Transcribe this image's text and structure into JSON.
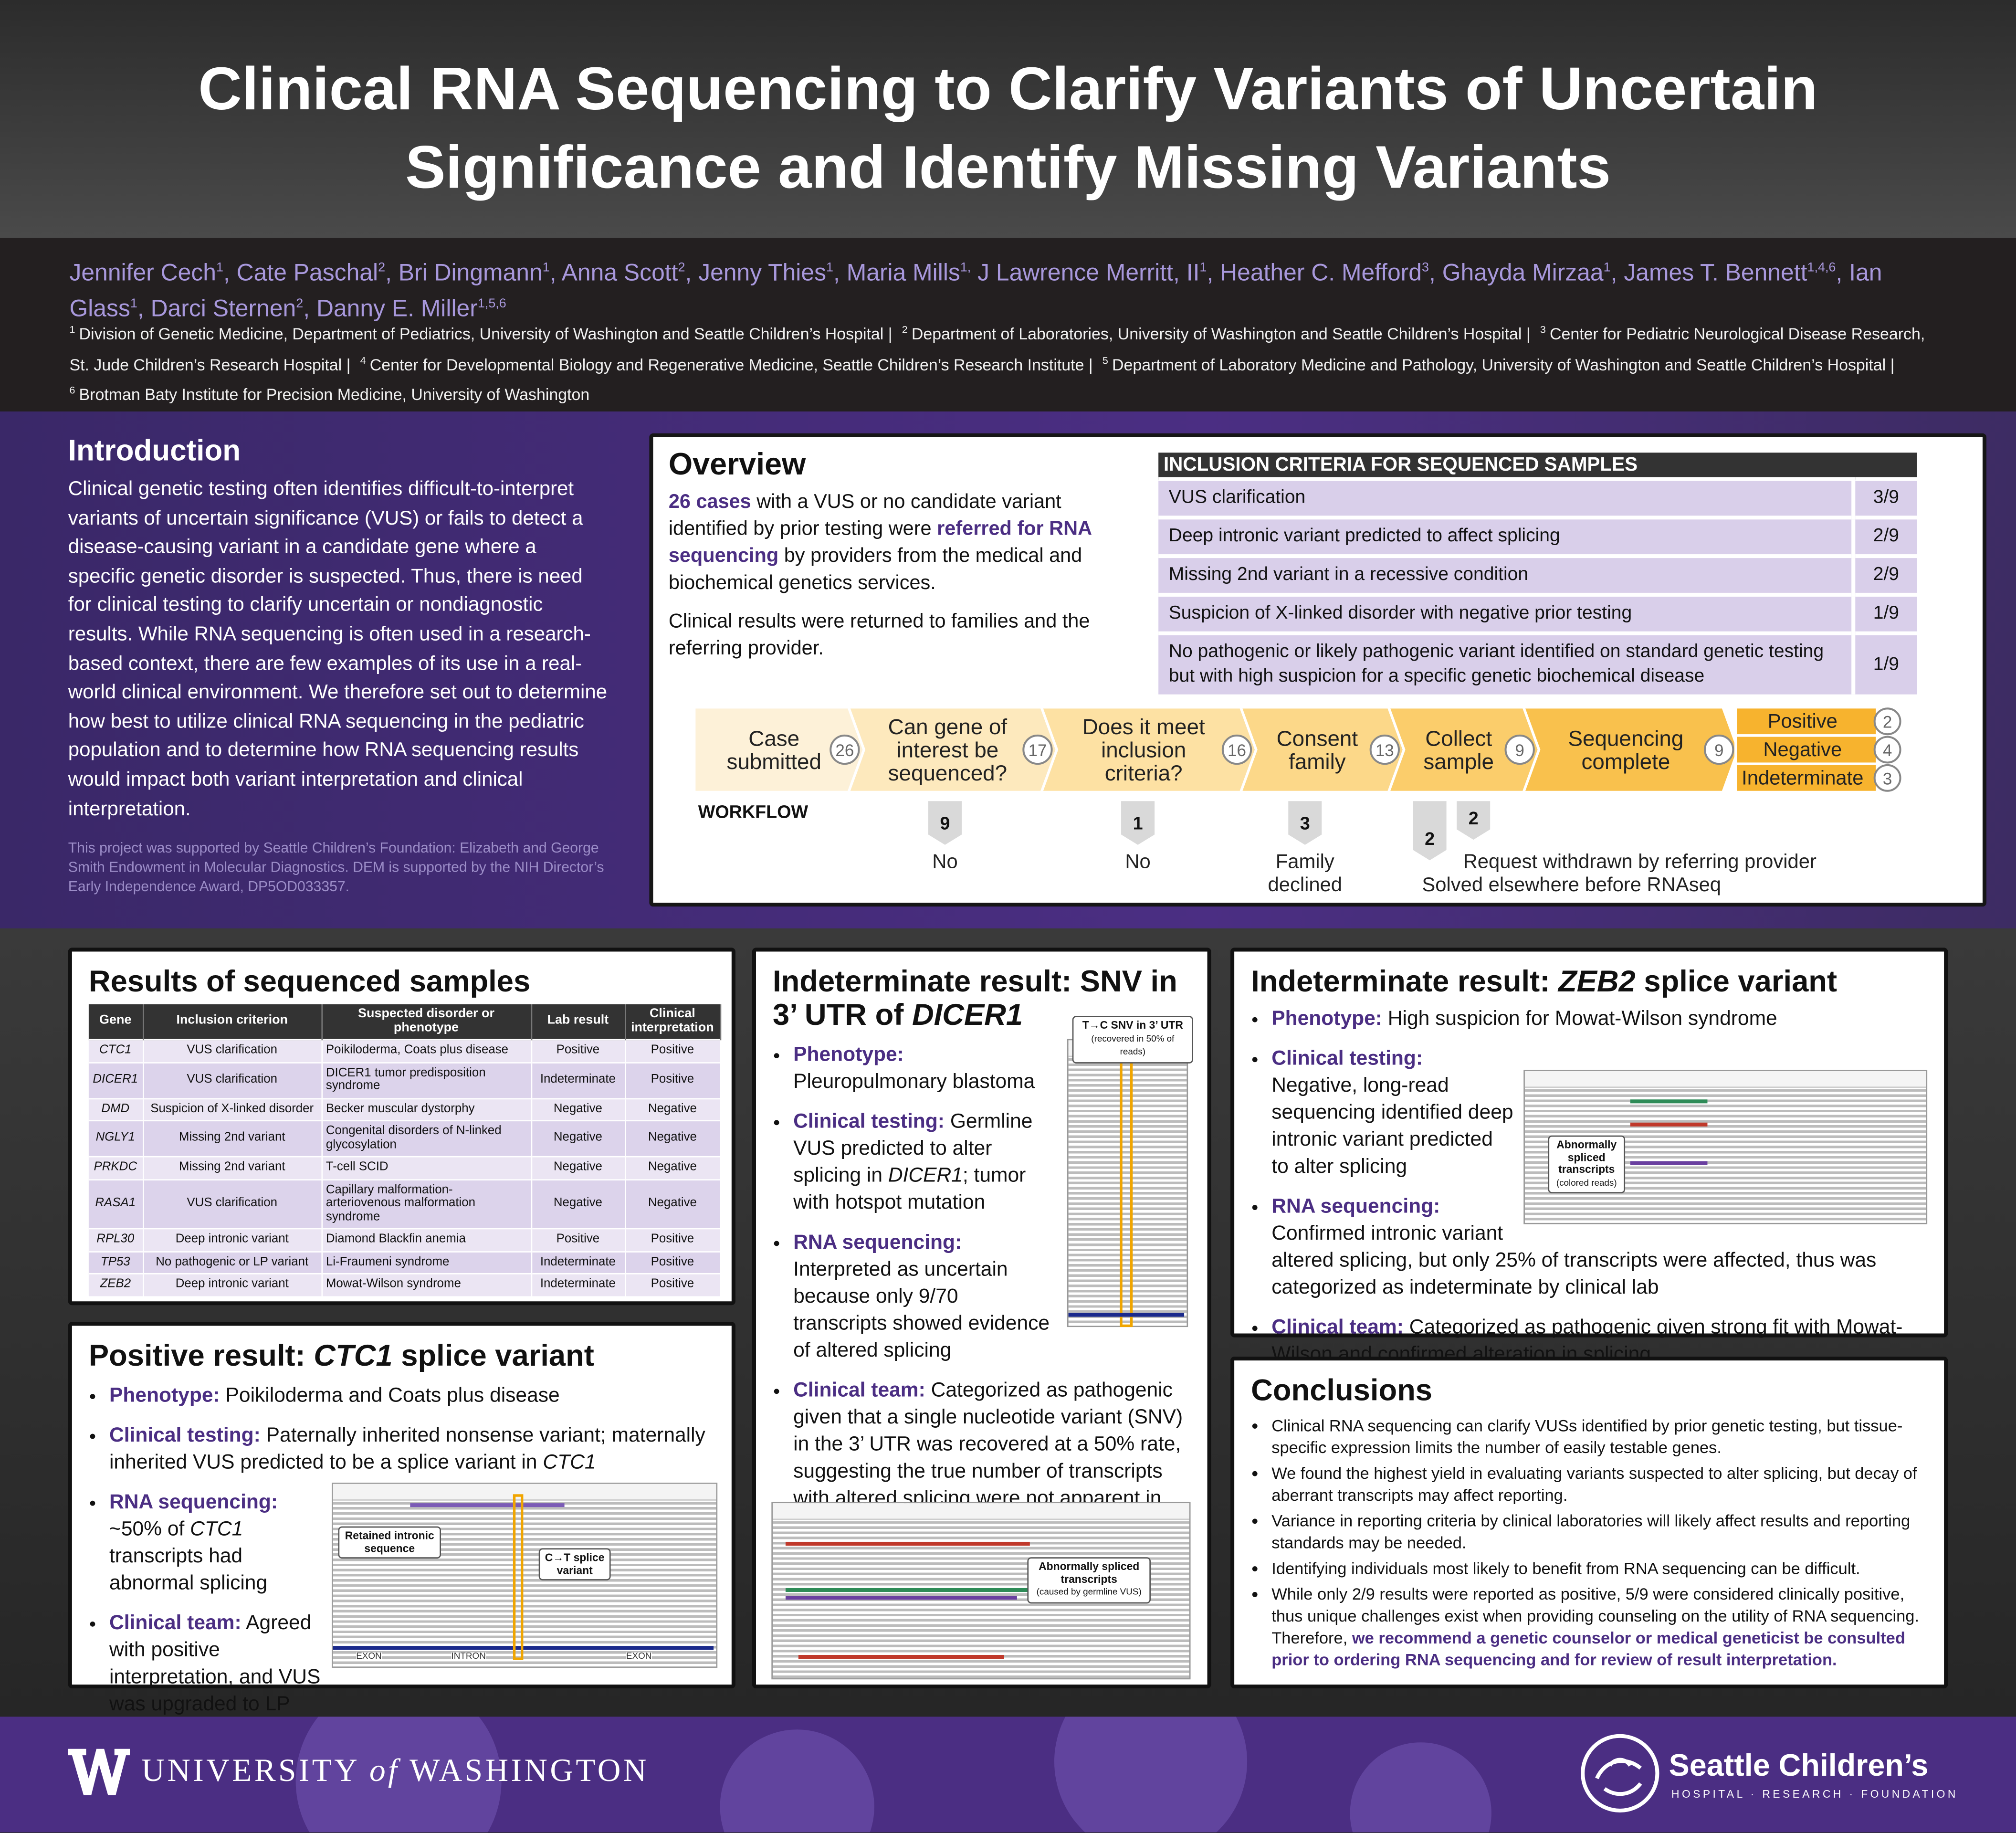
{
  "header": {
    "title": [
      "Clinical RNA Sequencing to Clarify Variants of Uncertain",
      "Significance and Identify Missing Variants"
    ],
    "authors": [
      {
        "name": "Jennifer Cech",
        "sup": "1",
        "sep": ","
      },
      {
        "name": "Cate Paschal",
        "sup": "2",
        "sep": ","
      },
      {
        "name": "Bri Dingmann",
        "sup": "1",
        "sep": ","
      },
      {
        "name": "Anna Scott",
        "sup": "2",
        "sep": ","
      },
      {
        "name": "Jenny Thies",
        "sup": "1",
        "sep": ","
      },
      {
        "name": "Maria Mills",
        "sup": "1,",
        "sep": ""
      },
      {
        "name": "J Lawrence Merritt, II",
        "sup": "1",
        "sep": ","
      },
      {
        "name": "Heather C. Mefford",
        "sup": "3",
        "sep": ","
      },
      {
        "name": "Ghayda Mirzaa",
        "sup": "1",
        "sep": ","
      },
      {
        "name": "James T. Bennett",
        "sup": "1,4,6",
        "sep": ","
      },
      {
        "name": "Ian Glass",
        "sup": "1",
        "sep": ","
      },
      {
        "name": "Darci Sternen",
        "sup": "2",
        "sep": ","
      },
      {
        "name": "Danny E. Miller",
        "sup": "1,5,6",
        "sep": ""
      }
    ],
    "affiliations": [
      {
        "sup": "1",
        "text": "Division of Genetic Medicine, Department of Pediatrics, University of Washington and Seattle Children’s Hospital |"
      },
      {
        "sup": "2",
        "text": "Department of Laboratories, University of Washington and Seattle Children’s Hospital |"
      },
      {
        "sup": "3",
        "text": "Center for Pediatric Neurological Disease Research, St. Jude Children’s Research Hospital |"
      },
      {
        "sup": "4",
        "text": "Center for Developmental Biology and Regenerative Medicine, Seattle Children’s Research Institute |"
      },
      {
        "sup": "5",
        "text": "Department of Laboratory Medicine and Pathology, University of Washington and Seattle Children’s Hospital |"
      },
      {
        "sup": "6",
        "text": "Brotman Baty Institute for Precision Medicine, University of Washington"
      }
    ]
  },
  "introduction": {
    "heading": "Introduction",
    "body": "Clinical genetic testing often identifies difficult-to-interpret variants of uncertain significance (VUS) or fails to detect a disease-causing variant in a candidate gene where a specific genetic disorder is suspected. Thus, there is need for clinical testing to clarify uncertain or nondiagnostic results. While RNA sequencing is often used in a research-based context, there are few examples of its use in a real-world clinical environment. We therefore set out to determine how best to utilize clinical RNA sequencing in the pediatric population and to determine how RNA sequencing results would impact both variant interpretation and clinical interpretation.",
    "funding": "This project was supported by Seattle Children’s Foundation: Elizabeth and George Smith Endowment in Molecular Diagnostics. DEM is supported by the NIH Director’s Early Independence Award, DP5OD033357."
  },
  "overview": {
    "heading": "Overview",
    "paragraphs": [
      [
        {
          "text": "26 cases",
          "style": "emphasis"
        },
        " with a VUS or no candidate variant identified by prior testing were ",
        {
          "text": "referred for RNA sequencing",
          "style": "emphasis"
        },
        " by providers from the medical and biochemical genetics services."
      ],
      "Clinical results were returned to families and the referring provider."
    ],
    "inclusion_table": {
      "title": "INCLUSION CRITERIA FOR SEQUENCED SAMPLES",
      "rows": [
        [
          "VUS clarification",
          "3/9"
        ],
        [
          "Deep intronic variant predicted to affect splicing",
          "2/9"
        ],
        [
          "Missing 2nd variant in a recessive condition",
          "2/9"
        ],
        [
          "Suspicion of X-linked disorder with negative prior testing",
          "1/9"
        ],
        [
          "No pathogenic or likely pathogenic variant identified on standard genetic testing but with high suspicion for a specific genetic biochemical disease",
          "1/9"
        ]
      ]
    },
    "workflow": {
      "label": "WORKFLOW",
      "steps": [
        {
          "label": [
            "Case",
            "submitted"
          ],
          "count": 26
        },
        {
          "label": [
            "Can gene of",
            "interest be",
            "sequenced?"
          ],
          "count": 17
        },
        {
          "label": [
            "Does it meet",
            "inclusion",
            "criteria?"
          ],
          "count": 16
        },
        {
          "label": [
            "Consent",
            "family"
          ],
          "count": 13
        },
        {
          "label": [
            "Collect",
            "sample"
          ],
          "count": 9
        },
        {
          "label": [
            "Sequencing",
            "complete"
          ],
          "count": 9
        }
      ],
      "outcomes": [
        {
          "label": "Positive",
          "count": 2
        },
        {
          "label": "Negative",
          "count": 4
        },
        {
          "label": "Indeterminate",
          "count": 3
        }
      ],
      "dropouts": [
        {
          "count": 9,
          "label": [
            "No"
          ]
        },
        {
          "count": 1,
          "label": [
            "No"
          ]
        },
        {
          "count": 3,
          "label": [
            "Family",
            "declined"
          ]
        },
        {
          "count": 2,
          "label": [
            "Request withdrawn by referring provider"
          ]
        },
        {
          "count": 2,
          "label": [
            "Solved elsewhere before RNAseq"
          ]
        }
      ]
    }
  },
  "results_table": {
    "heading": "Results of sequenced samples",
    "columns": [
      "Gene",
      "Inclusion criterion",
      "Suspected disorder or phenotype",
      "Lab result",
      "Clinical interpretation"
    ],
    "rows": [
      [
        "CTC1",
        "VUS clarification",
        "Poikiloderma, Coats plus disease",
        "Positive",
        "Positive"
      ],
      [
        "DICER1",
        "VUS clarification",
        "DICER1 tumor predisposition syndrome",
        "Indeterminate",
        "Positive"
      ],
      [
        "DMD",
        "Suspicion of X-linked disorder",
        "Becker muscular dystorphy",
        "Negative",
        "Negative"
      ],
      [
        "NGLY1",
        "Missing 2nd variant",
        "Congenital disorders of N-linked glycosylation",
        "Negative",
        "Negative"
      ],
      [
        "PRKDC",
        "Missing 2nd variant",
        "T-cell SCID",
        "Negative",
        "Negative"
      ],
      [
        "RASA1",
        "VUS clarification",
        "Capillary malformation-arteriovenous malformation syndrome",
        "Negative",
        "Negative"
      ],
      [
        "RPL30",
        "Deep intronic variant",
        "Diamond Blackfin anemia",
        "Positive",
        "Positive"
      ],
      [
        "TP53",
        "No pathogenic or LP variant",
        "Li-Fraumeni syndrome",
        "Indeterminate",
        "Positive"
      ],
      [
        "ZEB2",
        "Deep intronic variant",
        "Mowat-Wilson syndrome",
        "Indeterminate",
        "Positive"
      ]
    ]
  },
  "positive_ctc1": {
    "heading": [
      "Positive result: ",
      {
        "text": "CTC1",
        "style": "italic"
      },
      " splice variant"
    ],
    "bullets": [
      [
        {
          "text": "Phenotype:",
          "style": "emphasis"
        },
        " Poikiloderma and Coats plus disease"
      ],
      [
        {
          "text": "Clinical testing:",
          "style": "emphasis"
        },
        " Paternally inherited nonsense variant; maternally inherited VUS predicted to be a splice variant in ",
        {
          "text": "CTC1",
          "style": "italic"
        }
      ],
      [
        {
          "text": "RNA sequencing:",
          "style": "emphasis"
        },
        " ~50% of ",
        {
          "text": "CTC1",
          "style": "italic"
        },
        " transcripts had abnormal splicing"
      ],
      [
        {
          "text": "Clinical team:",
          "style": "emphasis"
        },
        " Agreed with positive interpretation, and VUS was upgraded to LP"
      ]
    ],
    "figure": {
      "labels": [
        "Retained intronic sequence",
        "C→T splice variant"
      ],
      "regions": [
        "EXON",
        "INTRON",
        "EXON"
      ]
    }
  },
  "indeterminate_dicer1": {
    "heading": [
      "Indeterminate result: SNV in 3’ UTR of ",
      {
        "text": "DICER1",
        "style": "italic"
      }
    ],
    "bullets": [
      [
        {
          "text": "Phenotype:",
          "style": "emphasis"
        },
        " Pleuropulmonary blastoma"
      ],
      [
        {
          "text": "Clinical testing:",
          "style": "emphasis"
        },
        " Germline VUS predicted to alter splicing in ",
        {
          "text": "DICER1",
          "style": "italic"
        },
        "; tumor with hotspot mutation"
      ],
      [
        {
          "text": "RNA sequencing:",
          "style": "emphasis"
        },
        " Interpreted as uncertain because only 9/70 transcripts showed evidence of altered splicing"
      ],
      [
        {
          "text": "Clinical team:",
          "style": "emphasis"
        },
        " Categorized as pathogenic given that a single nucleotide variant (SNV) in the 3’ UTR was recovered at a 50% rate, suggesting the true number of transcripts with altered splicing were not apparent in the short-read sequencing data"
      ]
    ],
    "figure_snv": {
      "label": "T→C SNV in 3’ UTR",
      "note": "(recovered in 50% of reads)"
    },
    "figure_splice": {
      "label": "Abnormally spliced transcripts",
      "note": "(caused by germline VUS)"
    }
  },
  "indeterminate_zeb2": {
    "heading": [
      "Indeterminate result: ",
      {
        "text": "ZEB2",
        "style": "italic"
      },
      " splice variant"
    ],
    "bullets": [
      [
        {
          "text": "Phenotype:",
          "style": "emphasis"
        },
        " High suspicion for Mowat-Wilson syndrome"
      ],
      [
        {
          "text": "Clinical testing:",
          "style": "emphasis"
        },
        " Negative, long-read sequencing identified deep intronic variant predicted to alter splicing"
      ],
      [
        {
          "text": "RNA sequencing:",
          "style": "emphasis"
        },
        " Confirmed intronic variant altered splicing, but only 25% of transcripts were affected, thus was categorized as indeterminate by clinical lab"
      ],
      [
        {
          "text": "Clinical team:",
          "style": "emphasis"
        },
        " Categorized as pathogenic given strong fit with Mowat-Wilson and confirmed alteration in splicing"
      ]
    ],
    "figure": {
      "label": "Abnormally spliced transcripts",
      "note": "(colored reads)"
    }
  },
  "conclusions": {
    "heading": "Conclusions",
    "bullets": [
      "Clinical RNA sequencing can clarify VUSs identified by prior genetic testing, but tissue-specific expression limits the number of easily testable genes.",
      "We found the highest yield in evaluating variants suspected to alter splicing, but decay of aberrant transcripts may affect reporting.",
      "Variance in reporting criteria by clinical laboratories will likely affect results and reporting standards may be needed.",
      "Identifying individuals most likely to benefit from RNA sequencing can be difficult.",
      [
        "While only 2/9 results were reported as positive, 5/9 were considered clinically positive, thus unique challenges exist when providing counseling on the utility of RNA sequencing. Therefore, ",
        {
          "text": "we recommend a genetic counselor or medical geneticist be consulted prior to ordering RNA sequencing and for review of result interpretation.",
          "style": "emphasis"
        }
      ]
    ]
  },
  "footer": {
    "university": [
      "UNIVERSITY ",
      {
        "text": "of",
        "style": "italic"
      },
      " WASHINGTON"
    ],
    "hospital": "Seattle Children’s",
    "hospital_tagline": "HOSPITAL · RESEARCH · FOUNDATION"
  }
}
